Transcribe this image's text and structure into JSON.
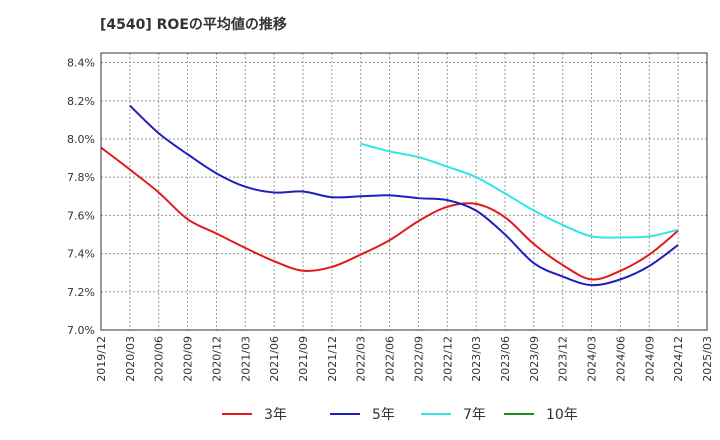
{
  "chart_data": {
    "type": "line",
    "title": "[4540]  ROEの平均値の推移",
    "xlabel": "",
    "ylabel": "",
    "x_ticks": [
      "2019/12",
      "2020/03",
      "2020/06",
      "2020/09",
      "2020/12",
      "2021/03",
      "2021/06",
      "2021/09",
      "2021/12",
      "2022/03",
      "2022/06",
      "2022/09",
      "2022/12",
      "2023/03",
      "2023/06",
      "2023/09",
      "2023/12",
      "2024/03",
      "2024/06",
      "2024/09",
      "2024/12",
      "2025/03"
    ],
    "y_ticks": [
      "7.0%",
      "7.2%",
      "7.4%",
      "7.6%",
      "7.8%",
      "8.0%",
      "8.2%",
      "8.4%"
    ],
    "ylim": [
      7.0,
      8.45
    ],
    "grid": true,
    "legend_position": "bottom",
    "series": [
      {
        "name": "3年",
        "color": "#e31a1c",
        "points": [
          [
            0,
            7.955
          ],
          [
            1,
            7.84
          ],
          [
            2,
            7.72
          ],
          [
            3,
            7.58
          ],
          [
            4,
            7.505
          ],
          [
            5,
            7.43
          ],
          [
            6,
            7.36
          ],
          [
            7,
            7.31
          ],
          [
            8,
            7.33
          ],
          [
            9,
            7.395
          ],
          [
            10,
            7.47
          ],
          [
            11,
            7.57
          ],
          [
            12,
            7.645
          ],
          [
            13,
            7.66
          ],
          [
            14,
            7.59
          ],
          [
            15,
            7.45
          ],
          [
            16,
            7.34
          ],
          [
            17,
            7.265
          ],
          [
            18,
            7.31
          ],
          [
            19,
            7.395
          ],
          [
            20,
            7.52
          ]
        ]
      },
      {
        "name": "5年",
        "color": "#1f1fbf",
        "points": [
          [
            1,
            8.175
          ],
          [
            2,
            8.03
          ],
          [
            3,
            7.92
          ],
          [
            4,
            7.82
          ],
          [
            5,
            7.75
          ],
          [
            6,
            7.72
          ],
          [
            7,
            7.725
          ],
          [
            8,
            7.695
          ],
          [
            9,
            7.7
          ],
          [
            10,
            7.705
          ],
          [
            11,
            7.69
          ],
          [
            12,
            7.68
          ],
          [
            13,
            7.625
          ],
          [
            14,
            7.5
          ],
          [
            15,
            7.35
          ],
          [
            16,
            7.28
          ],
          [
            17,
            7.235
          ],
          [
            18,
            7.265
          ],
          [
            19,
            7.335
          ],
          [
            20,
            7.445
          ]
        ]
      },
      {
        "name": "7年",
        "color": "#33e6e6",
        "points": [
          [
            9,
            7.975
          ],
          [
            10,
            7.935
          ],
          [
            11,
            7.905
          ],
          [
            12,
            7.855
          ],
          [
            13,
            7.8
          ],
          [
            14,
            7.715
          ],
          [
            15,
            7.625
          ],
          [
            16,
            7.55
          ],
          [
            17,
            7.49
          ],
          [
            18,
            7.485
          ],
          [
            19,
            7.49
          ],
          [
            20,
            7.525
          ]
        ]
      },
      {
        "name": "10年",
        "color": "#1f8f1f",
        "points": []
      }
    ]
  }
}
